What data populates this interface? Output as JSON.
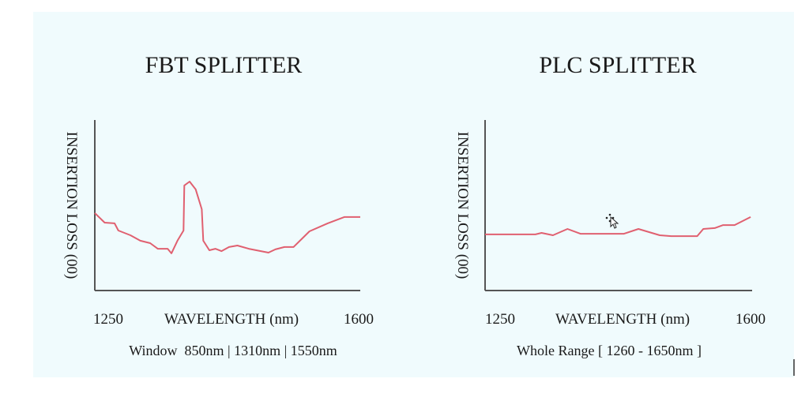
{
  "colors": {
    "background": "#f0fbfd",
    "line": "#e06070",
    "axis": "#555555",
    "text": "#1a1a1a"
  },
  "chart_data": [
    {
      "type": "line",
      "title": "FBT SPLITTER",
      "xlabel": "WAVELENGTH (nm)",
      "ylabel": "INSERTION LOSS (00)",
      "x_tick_labels": [
        "1250",
        "1600"
      ],
      "xlim": [
        1250,
        1600
      ],
      "ylim": [
        0,
        100
      ],
      "caption": "Window  850nm | 1310nm | 1550nm",
      "grid": false,
      "series": [
        {
          "name": "FBT",
          "x": [
            1250,
            1263,
            1276,
            1281,
            1297,
            1310,
            1323,
            1333,
            1346,
            1351,
            1359,
            1367,
            1368,
            1375,
            1383,
            1391,
            1393,
            1401,
            1409,
            1417,
            1427,
            1438,
            1453,
            1469,
            1479,
            1488,
            1500,
            1512,
            1533,
            1557,
            1579,
            1600
          ],
          "y": [
            45.4,
            39.8,
            39.4,
            35.2,
            32.4,
            29.2,
            27.8,
            24.5,
            24.5,
            21.8,
            29.2,
            35.2,
            61.6,
            63.9,
            59.3,
            47.7,
            29.2,
            23.6,
            24.5,
            23.1,
            25.5,
            26.4,
            24.5,
            23.1,
            22.2,
            24.1,
            25.5,
            25.5,
            34.7,
            39.4,
            43.1,
            43.1
          ]
        }
      ]
    },
    {
      "type": "line",
      "title": "PLC SPLITTER",
      "xlabel": "WAVELENGTH (nm)",
      "ylabel": "INSERTION LOSS (00)",
      "x_tick_labels": [
        "1250",
        "1600"
      ],
      "xlim": [
        1250,
        1600
      ],
      "ylim": [
        0,
        100
      ],
      "caption": "Whole Range [ 1260 - 1650nm ]",
      "grid": false,
      "series": [
        {
          "name": "PLC",
          "x": [
            1250,
            1316,
            1324,
            1339,
            1358,
            1375,
            1432,
            1451,
            1479,
            1494,
            1528,
            1536,
            1551,
            1562,
            1577,
            1598
          ],
          "y": [
            32.9,
            32.9,
            33.8,
            32.4,
            36.1,
            33.3,
            33.3,
            36.1,
            32.4,
            31.9,
            31.9,
            36.1,
            36.6,
            38.4,
            38.4,
            43.1
          ]
        }
      ]
    }
  ]
}
